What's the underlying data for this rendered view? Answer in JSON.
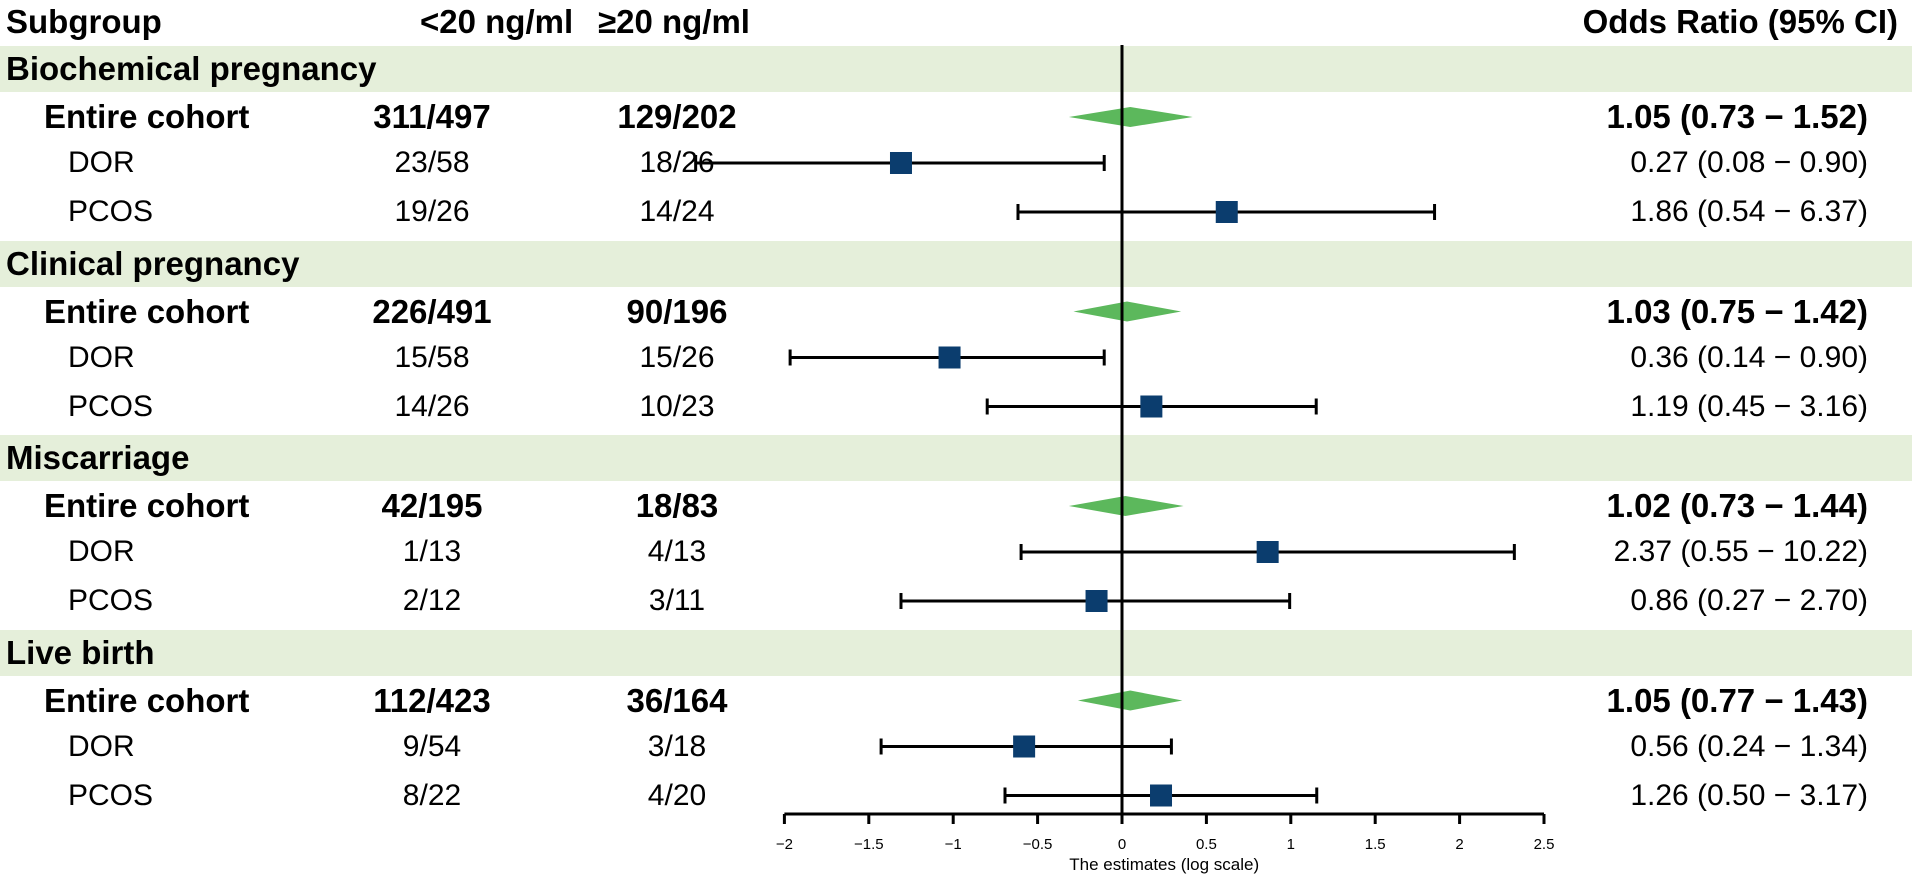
{
  "headers": {
    "subgroup": "Subgroup",
    "col_a": "<20 ng/ml",
    "col_b": "≥20 ng/ml",
    "odds_ratio": "Odds Ratio (95% CI)"
  },
  "colors": {
    "band": "#e5efda",
    "square": "#0b3d6e",
    "diamond": "#5cb85c",
    "line": "#000000"
  },
  "chart_data": {
    "type": "forest",
    "xlabel": "The estimates (log scale)",
    "xlim": [
      -2,
      2.5
    ],
    "xticks": [
      -2,
      -1.5,
      -1,
      -0.5,
      0,
      0.5,
      1,
      1.5,
      2,
      2.5
    ],
    "xtick_labels": [
      "−2",
      "−1.5",
      "−1",
      "−0.5",
      "0",
      "0.5",
      "1",
      "1.5",
      "2",
      "2.5"
    ],
    "reference_line": 0,
    "groups": [
      {
        "title": "Biochemical pregnancy",
        "rows": [
          {
            "label": "Entire cohort",
            "a": "311/497",
            "b": "129/202",
            "or_text": "1.05 (0.73 − 1.52)",
            "or": 1.05,
            "lo": 0.73,
            "hi": 1.52,
            "summary": true
          },
          {
            "label": "DOR",
            "a": "23/58",
            "b": "18/26",
            "or_text": "0.27 (0.08 − 0.90)",
            "or": 0.27,
            "lo": 0.08,
            "hi": 0.9,
            "summary": false
          },
          {
            "label": "PCOS",
            "a": "19/26",
            "b": "14/24",
            "or_text": "1.86 (0.54 − 6.37)",
            "or": 1.86,
            "lo": 0.54,
            "hi": 6.37,
            "summary": false
          }
        ]
      },
      {
        "title": "Clinical pregnancy",
        "rows": [
          {
            "label": "Entire cohort",
            "a": "226/491",
            "b": "90/196",
            "or_text": "1.03 (0.75 − 1.42)",
            "or": 1.03,
            "lo": 0.75,
            "hi": 1.42,
            "summary": true
          },
          {
            "label": "DOR",
            "a": "15/58",
            "b": "15/26",
            "or_text": "0.36 (0.14 − 0.90)",
            "or": 0.36,
            "lo": 0.14,
            "hi": 0.9,
            "summary": false
          },
          {
            "label": "PCOS",
            "a": "14/26",
            "b": "10/23",
            "or_text": "1.19 (0.45 − 3.16)",
            "or": 1.19,
            "lo": 0.45,
            "hi": 3.16,
            "summary": false
          }
        ]
      },
      {
        "title": "Miscarriage",
        "rows": [
          {
            "label": "Entire cohort",
            "a": "42/195",
            "b": "18/83",
            "or_text": "1.02 (0.73 − 1.44)",
            "or": 1.02,
            "lo": 0.73,
            "hi": 1.44,
            "summary": true
          },
          {
            "label": "DOR",
            "a": "1/13",
            "b": "4/13",
            "or_text": "2.37 (0.55 − 10.22)",
            "or": 2.37,
            "lo": 0.55,
            "hi": 10.22,
            "summary": false
          },
          {
            "label": "PCOS",
            "a": "2/12",
            "b": "3/11",
            "or_text": "0.86 (0.27 − 2.70)",
            "or": 0.86,
            "lo": 0.27,
            "hi": 2.7,
            "summary": false
          }
        ]
      },
      {
        "title": "Live birth",
        "rows": [
          {
            "label": "Entire cohort",
            "a": "112/423",
            "b": "36/164",
            "or_text": "1.05 (0.77 − 1.43)",
            "or": 1.05,
            "lo": 0.77,
            "hi": 1.43,
            "summary": true
          },
          {
            "label": "DOR",
            "a": "9/54",
            "b": "3/18",
            "or_text": "0.56 (0.24 − 1.34)",
            "or": 0.56,
            "lo": 0.24,
            "hi": 1.34,
            "summary": false
          },
          {
            "label": "PCOS",
            "a": "8/22",
            "b": "4/20",
            "or_text": "1.26 (0.50 − 3.17)",
            "or": 1.26,
            "lo": 0.5,
            "hi": 3.17,
            "summary": false
          }
        ]
      }
    ]
  }
}
